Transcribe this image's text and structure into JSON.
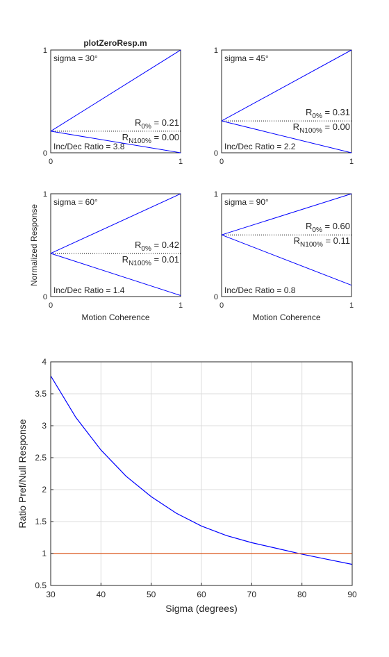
{
  "title": "plotZeroResp.m",
  "colors": {
    "line": "#0000ff",
    "ref": "#d95319",
    "grid": "#dcdcdc",
    "axis": "#262626"
  },
  "chart_data": [
    {
      "type": "line",
      "sigma_label": "sigma = 30°",
      "xlim": [
        0,
        1
      ],
      "ylim": [
        0,
        1
      ],
      "xticks": [
        "0",
        "1"
      ],
      "yticks": [
        "0",
        "1"
      ],
      "xlabel": "",
      "ylabel": "",
      "series": [
        {
          "x": [
            0,
            1
          ],
          "y": [
            0.21,
            1.0
          ]
        },
        {
          "x": [
            0,
            1
          ],
          "y": [
            0.21,
            0.0
          ]
        }
      ],
      "ref_line": {
        "x": [
          0,
          1
        ],
        "y": [
          0.21,
          0.21
        ],
        "style": "dotted"
      },
      "r0_value": "0.21",
      "rn_value": "0.00",
      "ratio_text": "Inc/Dec Ratio = 3.8"
    },
    {
      "type": "line",
      "sigma_label": "sigma = 45°",
      "xlim": [
        0,
        1
      ],
      "ylim": [
        0,
        1
      ],
      "xticks": [
        "0",
        "1"
      ],
      "yticks": [
        "0",
        "1"
      ],
      "xlabel": "",
      "ylabel": "",
      "series": [
        {
          "x": [
            0,
            1
          ],
          "y": [
            0.31,
            1.0
          ]
        },
        {
          "x": [
            0,
            1
          ],
          "y": [
            0.31,
            0.0
          ]
        }
      ],
      "ref_line": {
        "x": [
          0,
          1
        ],
        "y": [
          0.31,
          0.31
        ],
        "style": "dotted"
      },
      "r0_value": "0.31",
      "rn_value": "0.00",
      "ratio_text": "Inc/Dec Ratio = 2.2"
    },
    {
      "type": "line",
      "sigma_label": "sigma = 60°",
      "xlim": [
        0,
        1
      ],
      "ylim": [
        0,
        1
      ],
      "xticks": [
        "0",
        "1"
      ],
      "yticks": [
        "0",
        "1"
      ],
      "xlabel": "Motion Coherence",
      "ylabel": "Normalized Response",
      "series": [
        {
          "x": [
            0,
            1
          ],
          "y": [
            0.42,
            1.0
          ]
        },
        {
          "x": [
            0,
            1
          ],
          "y": [
            0.42,
            0.01
          ]
        }
      ],
      "ref_line": {
        "x": [
          0,
          1
        ],
        "y": [
          0.42,
          0.42
        ],
        "style": "dotted"
      },
      "r0_value": "0.42",
      "rn_value": "0.01",
      "ratio_text": "Inc/Dec Ratio = 1.4"
    },
    {
      "type": "line",
      "sigma_label": "sigma = 90°",
      "xlim": [
        0,
        1
      ],
      "ylim": [
        0,
        1
      ],
      "xticks": [
        "0",
        "1"
      ],
      "yticks": [
        "0",
        "1"
      ],
      "xlabel": "Motion Coherence",
      "ylabel": "",
      "series": [
        {
          "x": [
            0,
            1
          ],
          "y": [
            0.6,
            1.0
          ]
        },
        {
          "x": [
            0,
            1
          ],
          "y": [
            0.6,
            0.11
          ]
        }
      ],
      "ref_line": {
        "x": [
          0,
          1
        ],
        "y": [
          0.6,
          0.6
        ],
        "style": "dotted"
      },
      "r0_value": "0.60",
      "rn_value": "0.11",
      "ratio_text": "Inc/Dec Ratio = 0.8"
    },
    {
      "type": "line",
      "xlabel": "Sigma (degrees)",
      "ylabel": "Ratio Pref/Null Response",
      "xlim": [
        30,
        90
      ],
      "ylim": [
        0.5,
        4
      ],
      "xticks": [
        30,
        40,
        50,
        60,
        70,
        80,
        90
      ],
      "yticks": [
        0.5,
        1,
        1.5,
        2,
        2.5,
        3,
        3.5,
        4
      ],
      "grid": true,
      "series": [
        {
          "x": [
            30,
            35,
            40,
            45,
            50,
            55,
            60,
            65,
            70,
            75,
            80,
            85,
            90
          ],
          "y": [
            3.78,
            3.13,
            2.62,
            2.21,
            1.89,
            1.63,
            1.43,
            1.28,
            1.17,
            1.08,
            0.99,
            0.91,
            0.83
          ]
        },
        {
          "x": [
            30,
            90
          ],
          "y": [
            1,
            1
          ]
        }
      ]
    }
  ]
}
